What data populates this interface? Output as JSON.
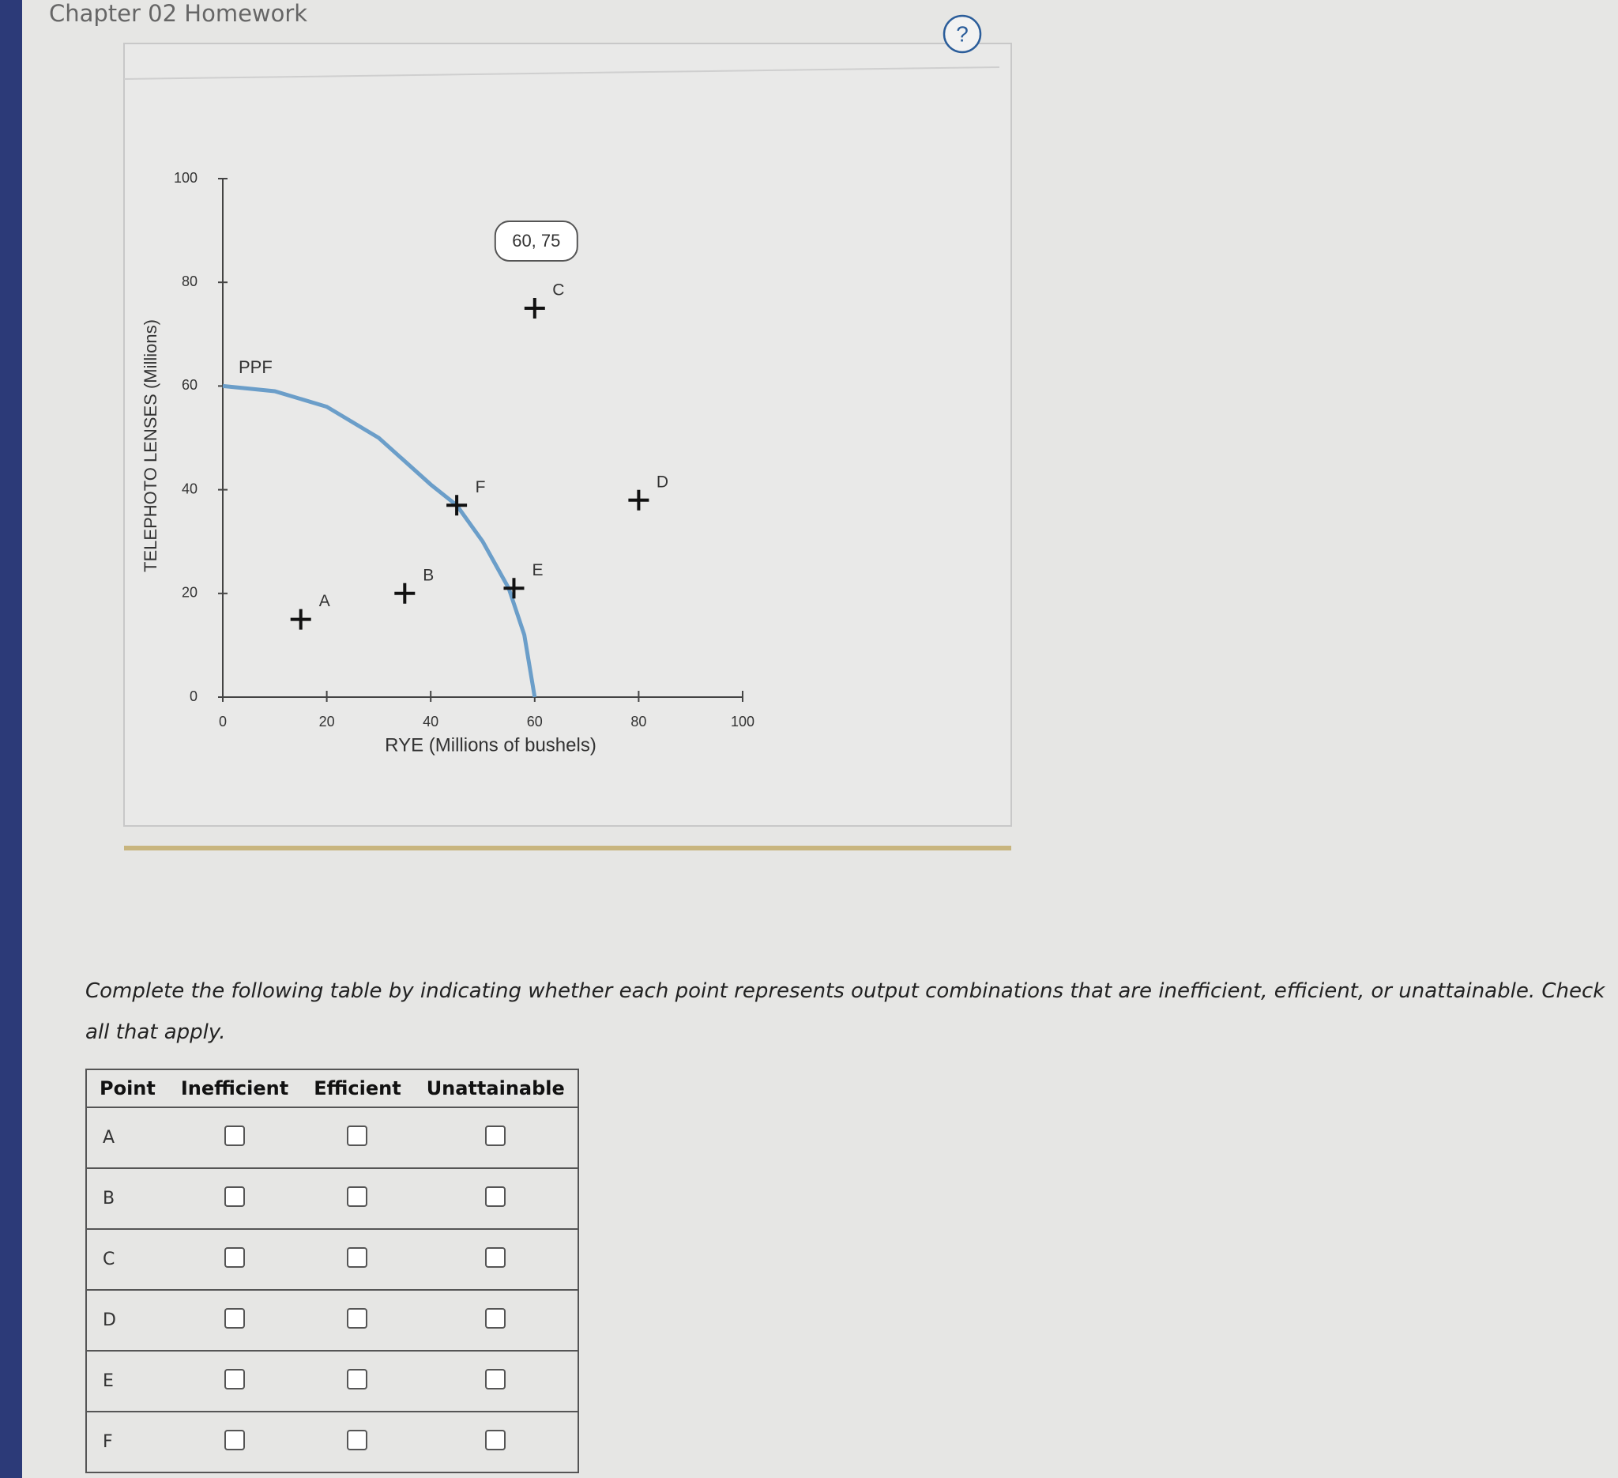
{
  "header": {
    "title": "Chapter 02 Homework",
    "help": "?"
  },
  "chart_data": {
    "type": "scatter",
    "xlabel": "RYE (Millions of bushels)",
    "ylabel": "TELEPHOTO LENSES (Millions)",
    "xlim": [
      0,
      100
    ],
    "ylim": [
      0,
      100
    ],
    "xticks": [
      0,
      20,
      40,
      60,
      80,
      100
    ],
    "yticks": [
      0,
      20,
      40,
      60,
      80,
      100
    ],
    "ppf": {
      "name": "PPF",
      "color": "#6b9ec9",
      "x": [
        0,
        10,
        20,
        30,
        40,
        45,
        50,
        55,
        58,
        60
      ],
      "y": [
        60,
        59,
        56,
        50,
        41,
        37,
        30,
        21,
        12,
        0
      ]
    },
    "points": [
      {
        "label": "A",
        "x": 15,
        "y": 15
      },
      {
        "label": "B",
        "x": 35,
        "y": 20
      },
      {
        "label": "C",
        "x": 60,
        "y": 75
      },
      {
        "label": "D",
        "x": 80,
        "y": 38
      },
      {
        "label": "E",
        "x": 56,
        "y": 21
      },
      {
        "label": "F",
        "x": 45,
        "y": 37
      }
    ],
    "annotation": "60, 75"
  },
  "instructions": "Complete the following table by indicating whether each point represents output combinations that are inefficient, efficient, or unattainable. Check all that apply.",
  "table": {
    "header": [
      "Point",
      "Inefficient",
      "Efficient",
      "Unattainable"
    ],
    "rows": [
      "A",
      "B",
      "C",
      "D",
      "E",
      "F"
    ]
  }
}
